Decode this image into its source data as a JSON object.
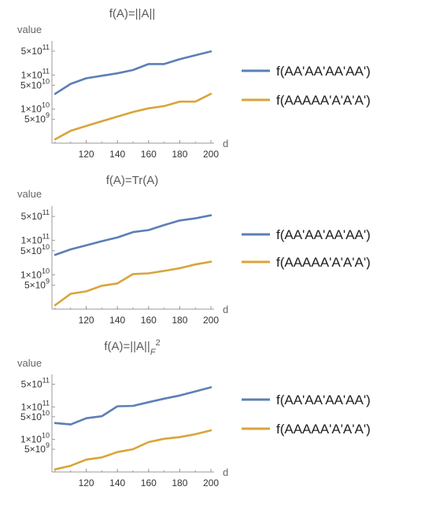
{
  "chart_data": [
    {
      "type": "line",
      "title": "f(A)=||A||",
      "xlabel": "d",
      "ylabel": "value",
      "yscale": "log",
      "x": [
        100,
        110,
        120,
        130,
        140,
        150,
        160,
        170,
        180,
        190,
        200
      ],
      "ylim": [
        1000000000,
        1000000000000
      ],
      "xticks": [
        "120",
        "140",
        "160",
        "180",
        "200"
      ],
      "yticks": [
        {
          "value": 500000000000,
          "mantissa": "5",
          "exp": "11"
        },
        {
          "value": 100000000000,
          "mantissa": "1",
          "exp": "11"
        },
        {
          "value": 50000000000,
          "mantissa": "5",
          "exp": "10"
        },
        {
          "value": 10000000000,
          "mantissa": "1",
          "exp": "10"
        },
        {
          "value": 5000000000,
          "mantissa": "5",
          "exp": "9"
        }
      ],
      "series": [
        {
          "name": "f(AA'AA'AA'AA')",
          "color": "#5b7fb5",
          "values": [
            28000000000,
            55000000000,
            80000000000,
            95000000000,
            112000000000,
            140000000000,
            210000000000,
            210000000000,
            290000000000,
            380000000000,
            490000000000
          ]
        },
        {
          "name": "f(AAAAA'A'A'A')",
          "color": "#d9a43a",
          "values": [
            1300000000,
            2300000000,
            3200000000,
            4400000000,
            6000000000,
            8200000000,
            10500000000,
            12200000000,
            16500000000,
            16500000000,
            28000000000
          ]
        }
      ]
    },
    {
      "type": "line",
      "title": "f(A)=Tr(A)",
      "xlabel": "d",
      "ylabel": "value",
      "yscale": "log",
      "x": [
        100,
        110,
        120,
        130,
        140,
        150,
        160,
        170,
        180,
        190,
        200
      ],
      "ylim": [
        1000000000,
        1000000000000
      ],
      "xticks": [
        "120",
        "140",
        "160",
        "180",
        "200"
      ],
      "yticks": [
        {
          "value": 500000000000,
          "mantissa": "5",
          "exp": "11"
        },
        {
          "value": 100000000000,
          "mantissa": "1",
          "exp": "11"
        },
        {
          "value": 50000000000,
          "mantissa": "5",
          "exp": "10"
        },
        {
          "value": 10000000000,
          "mantissa": "1",
          "exp": "10"
        },
        {
          "value": 5000000000,
          "mantissa": "5",
          "exp": "9"
        }
      ],
      "series": [
        {
          "name": "f(AA'AA'AA'AA')",
          "color": "#5b7fb5",
          "values": [
            38000000000,
            55000000000,
            72000000000,
            95000000000,
            122000000000,
            175000000000,
            200000000000,
            280000000000,
            380000000000,
            440000000000,
            540000000000
          ]
        },
        {
          "name": "f(AAAAA'A'A'A')",
          "color": "#d9a43a",
          "values": [
            1300000000,
            2800000000,
            3300000000,
            4800000000,
            5600000000,
            10500000000,
            11000000000,
            13000000000,
            15500000000,
            20000000000,
            24000000000
          ]
        }
      ]
    },
    {
      "type": "line",
      "title": "f(A)=||A||",
      "title_subscript": "F",
      "title_superscript": "2",
      "xlabel": "d",
      "ylabel": "value",
      "yscale": "log",
      "x": [
        100,
        110,
        120,
        130,
        140,
        150,
        160,
        170,
        180,
        190,
        200
      ],
      "ylim": [
        1000000000,
        1000000000000
      ],
      "xticks": [
        "120",
        "140",
        "160",
        "180",
        "200"
      ],
      "yticks": [
        {
          "value": 500000000000,
          "mantissa": "5",
          "exp": "11"
        },
        {
          "value": 100000000000,
          "mantissa": "1",
          "exp": "11"
        },
        {
          "value": 50000000000,
          "mantissa": "5",
          "exp": "10"
        },
        {
          "value": 10000000000,
          "mantissa": "1",
          "exp": "10"
        },
        {
          "value": 5000000000,
          "mantissa": "5",
          "exp": "9"
        }
      ],
      "series": [
        {
          "name": "f(AA'AA'AA'AA')",
          "color": "#5b7fb5",
          "values": [
            32000000000,
            29000000000,
            45000000000,
            52000000000,
            105000000000,
            108000000000,
            140000000000,
            180000000000,
            225000000000,
            300000000000,
            400000000000
          ]
        },
        {
          "name": "f(AAAAA'A'A'A')",
          "color": "#d9a43a",
          "values": [
            1200000000,
            1550000000,
            2400000000,
            2800000000,
            4100000000,
            5000000000,
            8300000000,
            10500000000,
            11800000000,
            14500000000,
            19000000000
          ]
        }
      ]
    }
  ]
}
